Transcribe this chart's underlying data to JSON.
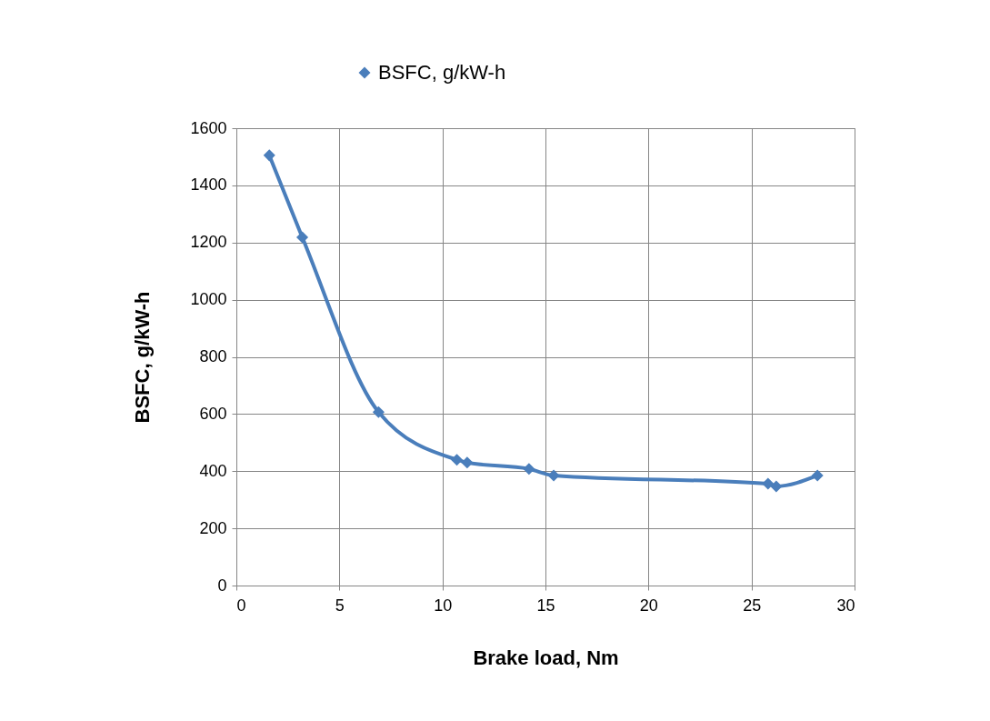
{
  "chart_data": {
    "type": "line",
    "xlabel": "Brake load, Nm",
    "ylabel": "BSFC, g/kW-h",
    "x": [
      1.6,
      3.2,
      6.9,
      10.7,
      11.2,
      14.2,
      15.4,
      25.8,
      26.2,
      28.2
    ],
    "series": [
      {
        "name": "BSFC, g/kW-h",
        "color": "#4a7ebb",
        "values": [
          1505,
          1218,
          607,
          440,
          430,
          408,
          385,
          356,
          347,
          385
        ]
      }
    ],
    "xlim": [
      0,
      30
    ],
    "xticks": [
      0,
      5,
      10,
      15,
      20,
      25,
      30
    ],
    "ylim": [
      0,
      1600
    ],
    "yticks": [
      0,
      200,
      400,
      600,
      800,
      1000,
      1200,
      1400,
      1600
    ],
    "grid": true,
    "legend": "top",
    "marker": "diamond",
    "line_style": "solid"
  }
}
